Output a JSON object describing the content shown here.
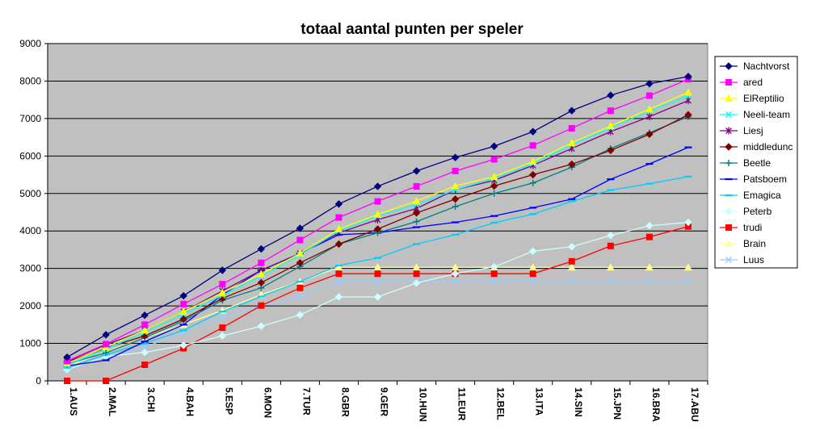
{
  "chart_data": {
    "type": "line",
    "title": "totaal aantal punten per speler",
    "xlabel": "",
    "ylabel": "",
    "ylim": [
      0,
      9000
    ],
    "yticks": [
      0,
      1000,
      2000,
      3000,
      4000,
      5000,
      6000,
      7000,
      8000,
      9000
    ],
    "grid": true,
    "legend": "right",
    "categories": [
      "1.AUS",
      "2.MAL",
      "3.CHI",
      "4.BAH",
      "5.ESP",
      "6.MON",
      "7.TUR",
      "8.GBR",
      "9.GER",
      "10.HUN",
      "11.EUR",
      "12.BEL",
      "13.ITA",
      "14.SIN",
      "15.JPN",
      "16.BRA",
      "17.ABU"
    ],
    "series": [
      {
        "name": "Nachtvorst",
        "color": "#000080",
        "marker": "diamond",
        "values": [
          630,
          1230,
          1750,
          2270,
          2950,
          3520,
          4070,
          4720,
          5190,
          5600,
          5960,
          6260,
          6650,
          7210,
          7620,
          7930,
          8120
        ]
      },
      {
        "name": "ared",
        "color": "#ff00ff",
        "marker": "square",
        "values": [
          530,
          980,
          1500,
          2050,
          2580,
          3150,
          3760,
          4360,
          4790,
          5190,
          5600,
          5910,
          6280,
          6740,
          7210,
          7610,
          8050
        ]
      },
      {
        "name": "ElReptilio",
        "color": "#ffff00",
        "marker": "triangle",
        "values": [
          470,
          900,
          1350,
          1850,
          2350,
          2850,
          3400,
          4050,
          4440,
          4800,
          5200,
          5450,
          5850,
          6350,
          6800,
          7250,
          7700
        ]
      },
      {
        "name": "Neeli-team",
        "color": "#00ffff",
        "marker": "x",
        "values": [
          420,
          850,
          1300,
          1780,
          2280,
          2800,
          3360,
          4000,
          4400,
          4700,
          5100,
          5400,
          5800,
          6300,
          6750,
          7200,
          7600
        ]
      },
      {
        "name": "Liesj",
        "color": "#800080",
        "marker": "star",
        "values": [
          520,
          960,
          1350,
          1850,
          2400,
          2950,
          3400,
          3950,
          4300,
          4600,
          5100,
          5350,
          5750,
          6200,
          6650,
          7050,
          7480
        ]
      },
      {
        "name": "middledunc",
        "color": "#800000",
        "marker": "diamond",
        "values": [
          500,
          880,
          1200,
          1650,
          2200,
          2620,
          3150,
          3650,
          4050,
          4480,
          4850,
          5200,
          5500,
          5780,
          6150,
          6580,
          7100
        ]
      },
      {
        "name": "Beetle",
        "color": "#008080",
        "marker": "plus",
        "values": [
          450,
          750,
          1150,
          1600,
          2150,
          2480,
          3050,
          3650,
          3950,
          4250,
          4650,
          5000,
          5280,
          5700,
          6200,
          6620,
          7050
        ]
      },
      {
        "name": "Patsboem",
        "color": "#0000ff",
        "marker": "dash",
        "values": [
          400,
          550,
          1050,
          1500,
          2300,
          2950,
          3400,
          3900,
          3950,
          4100,
          4230,
          4400,
          4620,
          4850,
          5380,
          5790,
          6230
        ]
      },
      {
        "name": "Emagica",
        "color": "#00ccff",
        "marker": "dash",
        "values": [
          350,
          700,
          1000,
          1350,
          1850,
          2250,
          2650,
          3080,
          3280,
          3650,
          3900,
          4220,
          4450,
          4790,
          5090,
          5260,
          5450
        ]
      },
      {
        "name": "Peterb",
        "color": "#ccffff",
        "marker": "diamond",
        "values": [
          300,
          650,
          760,
          950,
          1200,
          1460,
          1760,
          2240,
          2240,
          2610,
          2860,
          3040,
          3460,
          3580,
          3880,
          4140,
          4230
        ]
      },
      {
        "name": "trudi",
        "color": "#ff0000",
        "marker": "square",
        "values": [
          0,
          0,
          430,
          870,
          1420,
          2010,
          2480,
          2860,
          2860,
          2860,
          2860,
          2860,
          2860,
          3190,
          3600,
          3840,
          4120
        ]
      },
      {
        "name": "Brain",
        "color": "#ffff99",
        "marker": "triangle",
        "values": [
          380,
          780,
          1150,
          1500,
          1880,
          2300,
          2650,
          3030,
          3030,
          3030,
          3030,
          3030,
          3030,
          3030,
          3030,
          3030,
          3030
        ]
      },
      {
        "name": "Luus",
        "color": "#99ccff",
        "marker": "x",
        "values": [
          300,
          650,
          900,
          1300,
          1700,
          2000,
          2250,
          2650,
          2650,
          2650,
          2650,
          2650,
          2650,
          2650,
          2650,
          2650,
          2650
        ]
      }
    ]
  }
}
